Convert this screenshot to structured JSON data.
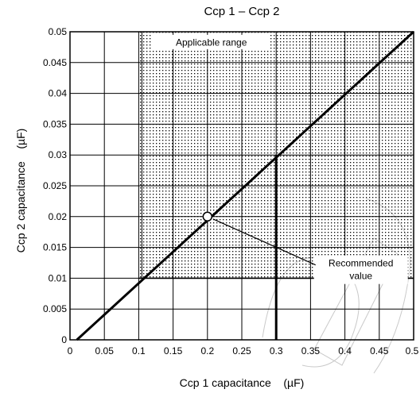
{
  "chart_data": {
    "type": "line",
    "title": "Ccp 1 – Ccp 2",
    "xlabel": "Ccp 1 capacitance    (µF)",
    "ylabel": "Ccp 2 capacitance    (µF)",
    "xlim": [
      0,
      0.5
    ],
    "ylim": [
      0,
      0.05
    ],
    "x_ticks": [
      "0",
      "0.05",
      "0.1",
      "0.15",
      "0.2",
      "0.25",
      "0.3",
      "0.35",
      "0.4",
      "0.45",
      "0.5"
    ],
    "y_ticks": [
      "0",
      "0.005",
      "0.01",
      "0.015",
      "0.02",
      "0.025",
      "0.03",
      "0.035",
      "0.04",
      "0.045",
      "0.05"
    ],
    "grid": true,
    "series": [
      {
        "values": [
          [
            0.01,
            0
          ],
          [
            0.5,
            0.05
          ]
        ]
      }
    ],
    "applicable_range": {
      "x": [
        0.1,
        0.5
      ],
      "y": [
        0.01,
        0.05
      ],
      "label": "Applicable range"
    },
    "recommended_point": {
      "x": 0.2,
      "y": 0.02,
      "label": "Recommended value",
      "label_lines": [
        "Recommended",
        "value"
      ]
    },
    "marker_lines": [
      {
        "orientation": "vertical",
        "x": 0.3,
        "y_from": 0,
        "y_to": 0.03
      }
    ]
  }
}
